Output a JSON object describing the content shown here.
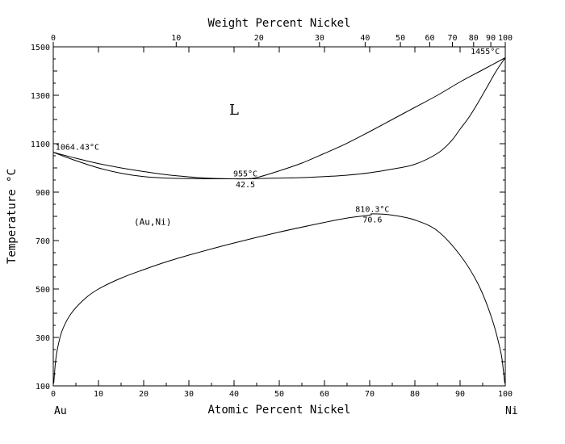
{
  "chart_data": {
    "type": "line",
    "title": "",
    "top_axis": {
      "label": "Weight Percent Nickel",
      "ticks": [
        0,
        10,
        20,
        30,
        40,
        50,
        60,
        70,
        80,
        90,
        100
      ],
      "tick_positions_atomic_pct": [
        0,
        27.2,
        45.5,
        58.9,
        69.0,
        76.8,
        83.3,
        88.3,
        93.0,
        96.8,
        100
      ]
    },
    "xlabel": "Atomic Percent Nickel",
    "ylabel": "Temperature °C",
    "xlim": [
      0,
      100
    ],
    "ylim": [
      100,
      1500
    ],
    "x_ticks": [
      0,
      10,
      20,
      30,
      40,
      50,
      60,
      70,
      80,
      90,
      100
    ],
    "y_ticks": [
      100,
      300,
      500,
      700,
      900,
      1100,
      1300,
      1500
    ],
    "endpoints": {
      "left": "Au",
      "right": "Ni"
    },
    "series": [
      {
        "role": "liquidus",
        "x": [
          0,
          5,
          10,
          15,
          20,
          25,
          30,
          35,
          40,
          42.5,
          45,
          50,
          55,
          60,
          65,
          70,
          75,
          80,
          85,
          90,
          95,
          100
        ],
        "y": [
          1064.43,
          1040,
          1018,
          1000,
          985,
          972,
          963,
          957,
          955,
          955,
          960,
          988,
          1020,
          1060,
          1102,
          1150,
          1200,
          1250,
          1300,
          1355,
          1405,
          1455
        ]
      },
      {
        "role": "solidus",
        "x": [
          0,
          5,
          10,
          15,
          20,
          25,
          30,
          35,
          40,
          42.5,
          45,
          50,
          55,
          60,
          65,
          70,
          75,
          80,
          85,
          88,
          90,
          92,
          94,
          96,
          98,
          100
        ],
        "y": [
          1064.43,
          1030,
          1000,
          978,
          964,
          958,
          956,
          955,
          955,
          955,
          956,
          958,
          960,
          964,
          970,
          980,
          995,
          1015,
          1060,
          1110,
          1160,
          1210,
          1270,
          1335,
          1400,
          1455
        ]
      },
      {
        "role": "miscibility-gap",
        "x": [
          0.1,
          0.5,
          1,
          2,
          4,
          7,
          10,
          15,
          20,
          25,
          30,
          40,
          50,
          60,
          65,
          70,
          70.6,
          75,
          80,
          85,
          90,
          94,
          97,
          99,
          99.6,
          99.9
        ],
        "y": [
          110,
          200,
          260,
          330,
          400,
          460,
          500,
          545,
          580,
          612,
          640,
          690,
          735,
          775,
          793,
          805,
          810.3,
          805,
          785,
          740,
          640,
          520,
          380,
          240,
          160,
          110
        ]
      }
    ],
    "annotations": [
      {
        "text": "1455°C",
        "x": 98.8,
        "y": 1470
      },
      {
        "text": "1064.43°C",
        "x": 0.5,
        "y": 1075
      },
      {
        "text": "955°C",
        "x": 42.5,
        "y": 965
      },
      {
        "text": "42.5",
        "x": 42.5,
        "y": 920
      },
      {
        "text": "810.3°C",
        "x": 70.6,
        "y": 818
      },
      {
        "text": "70.6",
        "x": 70.6,
        "y": 775
      }
    ],
    "phase_labels": [
      {
        "text": "L",
        "x": 40,
        "y": 1220,
        "style": "large"
      },
      {
        "text": "(Au,Ni)",
        "x": 22,
        "y": 765,
        "style": "small"
      }
    ],
    "grid": false,
    "legend": "none"
  }
}
